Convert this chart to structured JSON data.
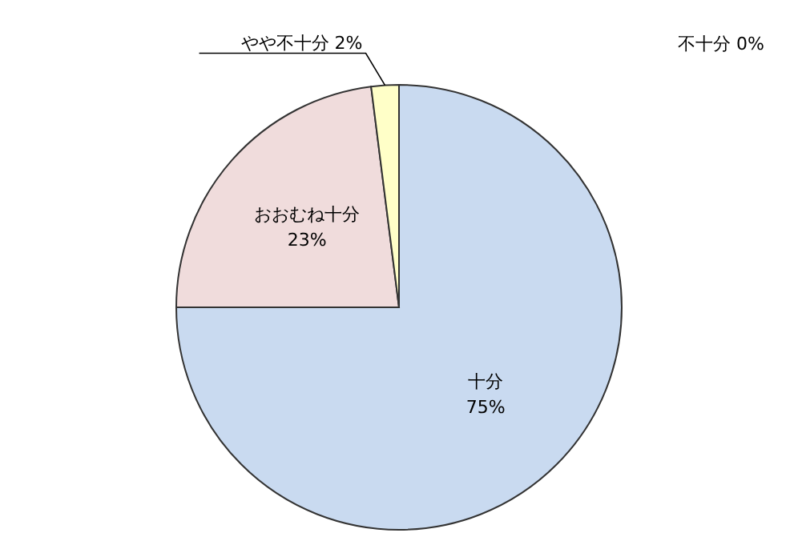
{
  "chart_data": {
    "type": "pie",
    "categories": [
      "十分",
      "おおむね十分",
      "やや不十分",
      "不十分"
    ],
    "values": [
      75,
      23,
      2,
      0
    ],
    "value_labels": [
      "75%",
      "23%",
      "2%",
      "0%"
    ],
    "colors": [
      "#c9daf0",
      "#f0dcdc",
      "#ffffc8",
      "#ffffff"
    ],
    "legend": false
  }
}
